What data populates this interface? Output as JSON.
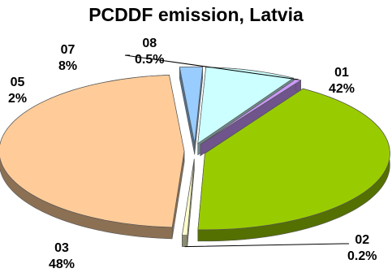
{
  "chart_data": {
    "type": "pie",
    "title": "PCDDF emission, Latvia",
    "three_d": true,
    "exploded": true,
    "slices": [
      {
        "name": "01",
        "value": 42,
        "value_label": "42%",
        "color": "#99cc00"
      },
      {
        "name": "02",
        "value": 0.2,
        "value_label": "0.2%",
        "color": "#ffffcc"
      },
      {
        "name": "03",
        "value": 48,
        "value_label": "48%",
        "color": "#ffcc99"
      },
      {
        "name": "05",
        "value": 2,
        "value_label": "2%",
        "color": "#99ccff"
      },
      {
        "name": "07",
        "value": 8,
        "value_label": "8%",
        "color": "#ccffff"
      },
      {
        "name": "08",
        "value": 0.5,
        "value_label": "0.5%",
        "color": "#cc99ff"
      }
    ]
  }
}
